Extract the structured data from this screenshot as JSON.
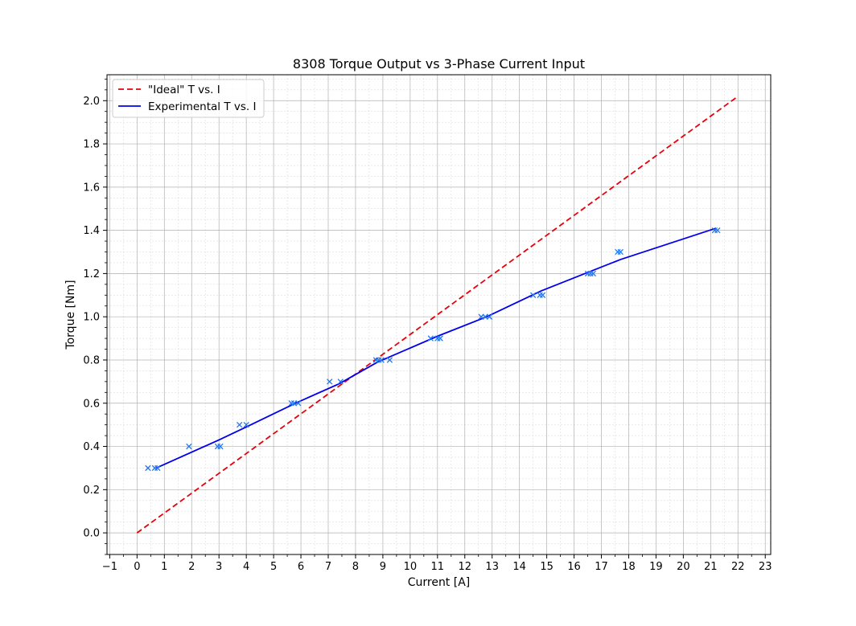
{
  "chart_data": {
    "type": "line",
    "title": "8308 Torque Output vs 3-Phase Current Input",
    "xlabel": "Current [A]",
    "ylabel": "Torque [Nm]",
    "xlim": [
      -1.1,
      23.2
    ],
    "ylim": [
      -0.1,
      2.12
    ],
    "x_ticks": [
      -1,
      0,
      1,
      2,
      3,
      4,
      5,
      6,
      7,
      8,
      9,
      10,
      11,
      12,
      13,
      14,
      15,
      16,
      17,
      18,
      19,
      20,
      21,
      22,
      23
    ],
    "y_ticks": [
      0.0,
      0.2,
      0.4,
      0.6,
      0.8,
      1.0,
      1.2,
      1.4,
      1.6,
      1.8,
      2.0
    ],
    "grid": true,
    "legend_position": "top-left",
    "series": [
      {
        "name": "\"Ideal\" T vs. I",
        "style": "dashed",
        "color": "#e8000b",
        "x": [
          0,
          22
        ],
        "y": [
          0.0,
          2.02
        ]
      },
      {
        "name": "Experimental T vs. I",
        "style": "solid",
        "color": "#0000ee",
        "x": [
          0.7,
          3.0,
          4.0,
          5.8,
          7.4,
          8.8,
          11.0,
          12.8,
          14.8,
          16.6,
          17.7,
          21.2
        ],
        "y": [
          0.3,
          0.43,
          0.49,
          0.6,
          0.69,
          0.79,
          0.91,
          1.0,
          1.12,
          1.21,
          1.265,
          1.41
        ]
      },
      {
        "name": "",
        "style": "markers",
        "marker": "x",
        "color": "#1f77f4",
        "x": [
          0.4,
          0.65,
          0.75,
          1.9,
          2.95,
          3.05,
          3.75,
          4.0,
          5.65,
          5.75,
          5.9,
          7.05,
          7.45,
          8.75,
          8.85,
          8.95,
          9.25,
          10.75,
          11.0,
          11.1,
          12.6,
          12.75,
          12.9,
          14.5,
          14.75,
          14.85,
          16.5,
          16.6,
          16.7,
          17.6,
          17.7,
          21.15,
          21.25
        ],
        "y": [
          0.3,
          0.3,
          0.3,
          0.4,
          0.4,
          0.4,
          0.5,
          0.5,
          0.6,
          0.6,
          0.6,
          0.7,
          0.7,
          0.8,
          0.8,
          0.8,
          0.8,
          0.9,
          0.9,
          0.9,
          1.0,
          1.0,
          1.0,
          1.1,
          1.1,
          1.1,
          1.2,
          1.2,
          1.2,
          1.3,
          1.3,
          1.4,
          1.4
        ]
      }
    ]
  }
}
